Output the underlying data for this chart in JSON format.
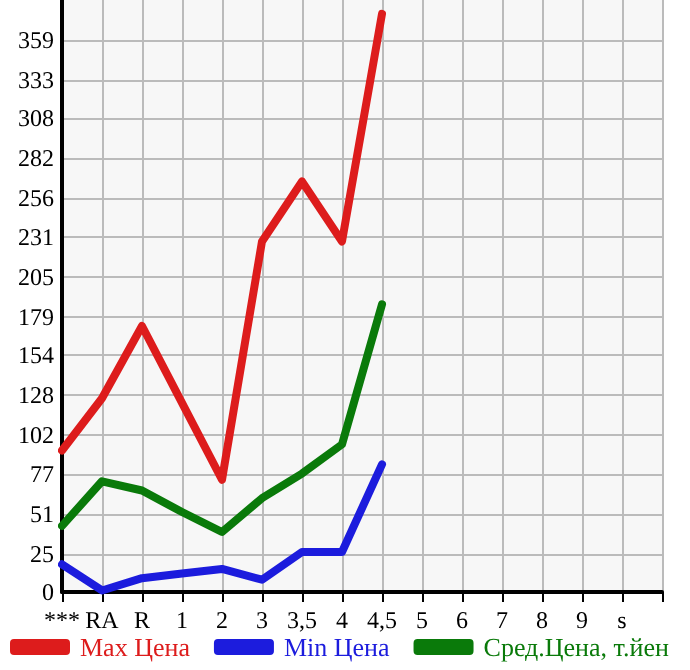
{
  "chart_data": {
    "type": "line",
    "categories": [
      "***",
      "RA",
      "R",
      "1",
      "2",
      "3",
      "3,5",
      "4",
      "4,5",
      "5",
      "6",
      "7",
      "8",
      "9",
      "s",
      null
    ],
    "series": [
      {
        "name": "Max Цена",
        "color": "#dd1c1c",
        "values": [
          92,
          126,
          173,
          123,
          73,
          228,
          267,
          228,
          376,
          null,
          null,
          null,
          null,
          null,
          null,
          null
        ]
      },
      {
        "name": "Min Цена",
        "color": "#1c1cdd",
        "values": [
          18,
          1,
          9,
          12,
          15,
          8,
          26,
          26,
          83,
          null,
          null,
          null,
          null,
          null,
          null,
          null
        ]
      },
      {
        "name": "Сред.Цена, т.йен",
        "color": "#0a7a0a",
        "values": [
          43,
          72,
          66,
          52,
          39,
          61,
          77,
          96,
          187,
          null,
          null,
          null,
          null,
          null,
          null,
          null
        ]
      }
    ],
    "ylim": [
      0,
      385
    ],
    "yticks": [
      0,
      25,
      51,
      77,
      102,
      128,
      154,
      179,
      205,
      231,
      256,
      282,
      308,
      333,
      359
    ],
    "grid": true,
    "legend": "bottom",
    "marker": "none",
    "line_style": "solid"
  }
}
